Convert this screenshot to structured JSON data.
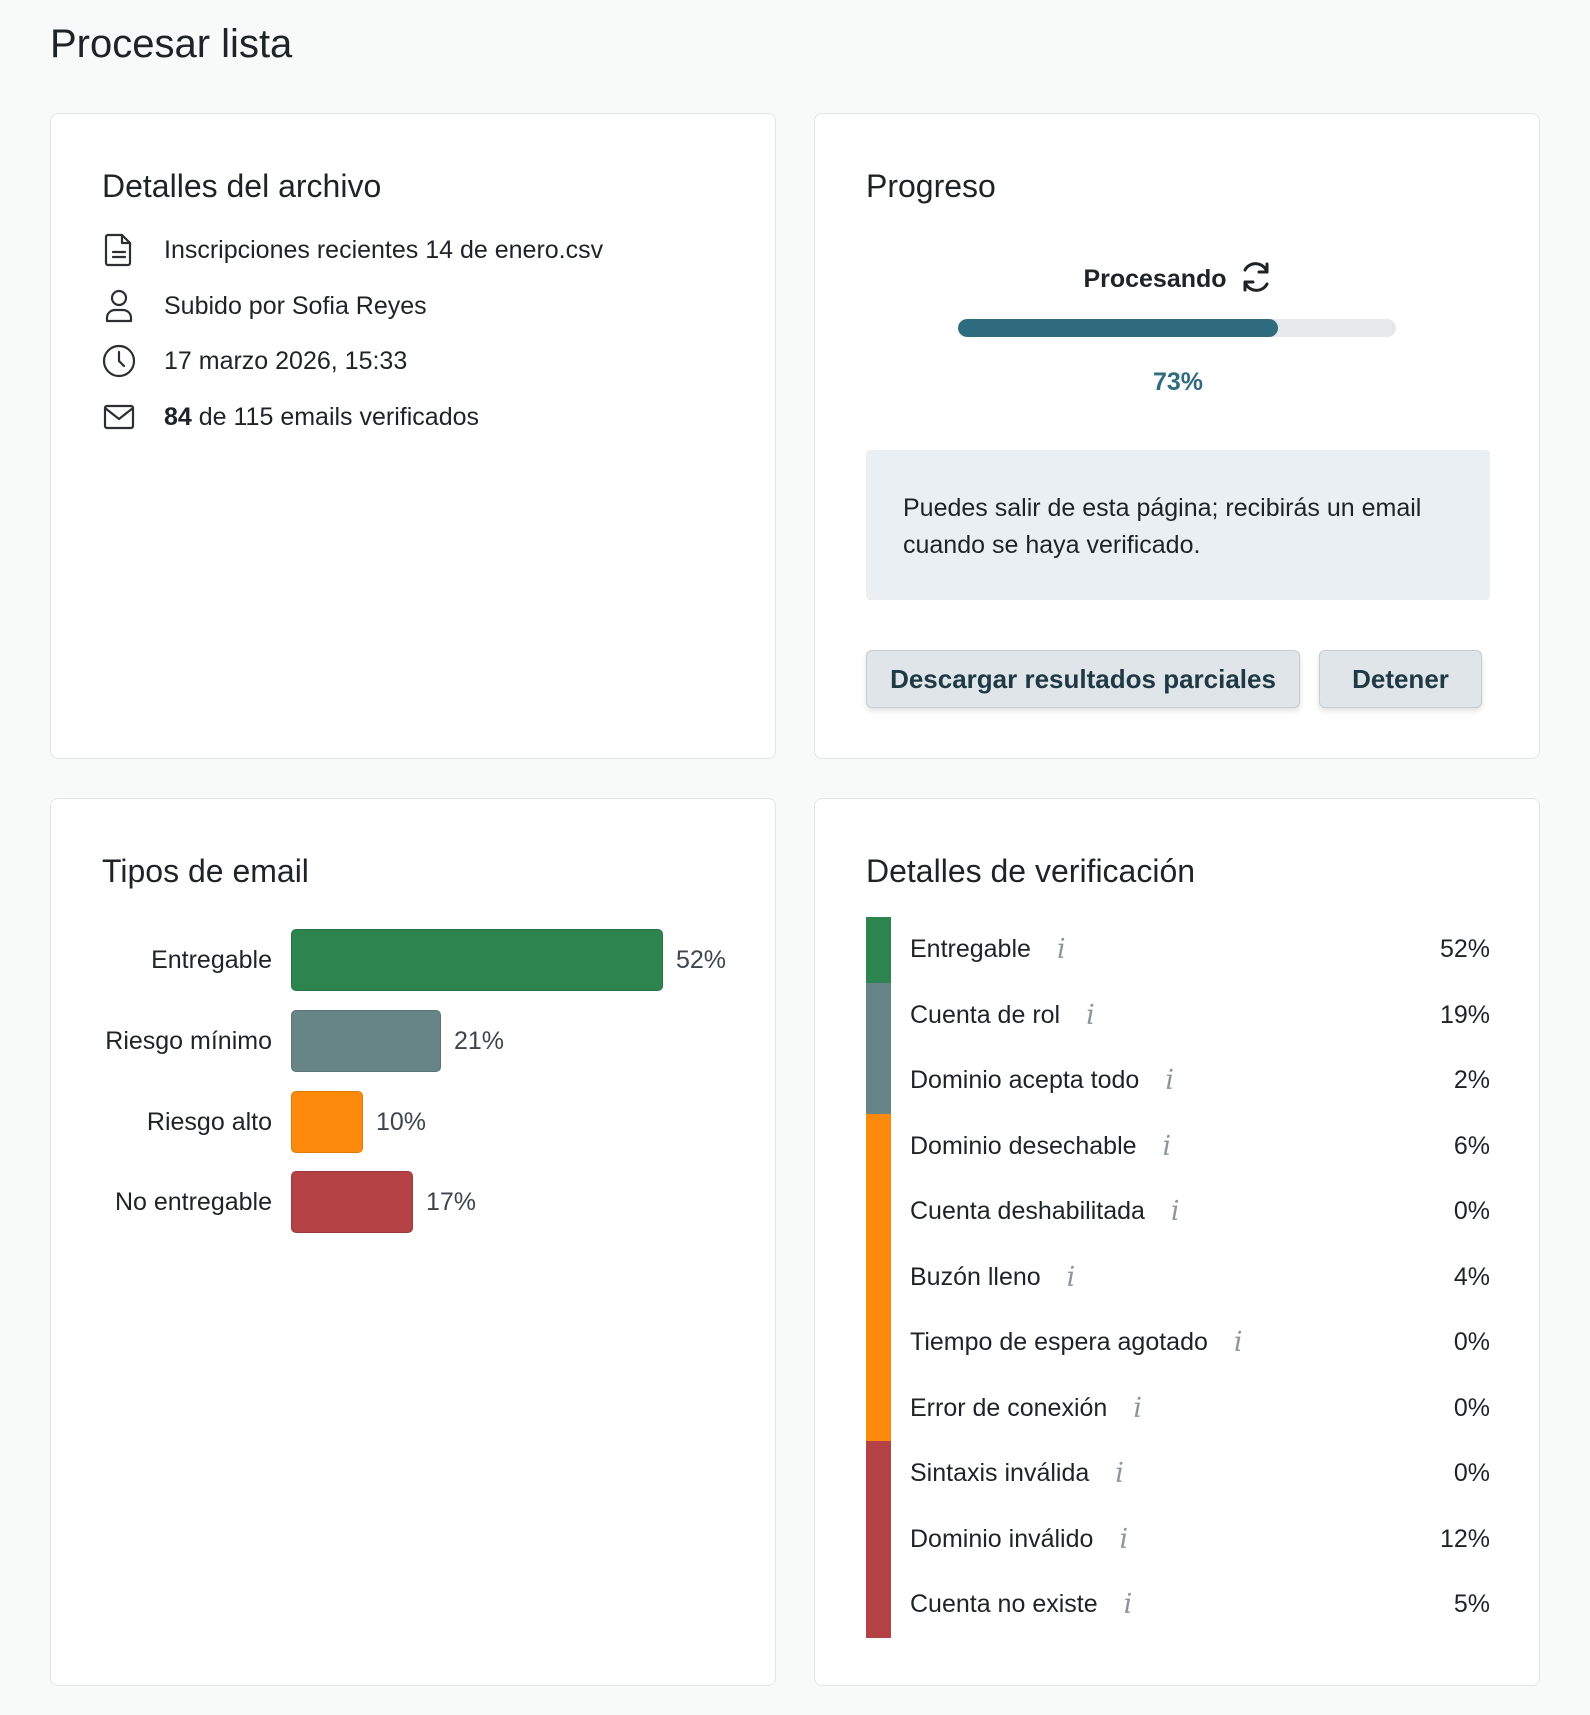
{
  "page_title": "Procesar lista",
  "file_details": {
    "title": "Detalles del archivo",
    "filename": "Inscripciones recientes 14 de enero.csv",
    "uploaded_by": "Subido por Sofia Reyes",
    "date": "17 marzo 2026, 15:33",
    "verified_count": "84",
    "verified_rest": " de 115 emails verificados",
    "icons": [
      "document-icon",
      "user-icon",
      "clock-icon",
      "envelope-icon"
    ]
  },
  "progress": {
    "title": "Progreso",
    "status": "Procesando",
    "percent_label": "73%",
    "percent_value": 73,
    "notice": "Puedes salir de esta página; recibirás un email cuando se haya verificado.",
    "download_button": "Descargar resultados parciales",
    "stop_button": "Detener",
    "accent_color": "#2e6b7e"
  },
  "email_types": {
    "title": "Tipos de email",
    "chart_data": {
      "type": "bar",
      "orientation": "horizontal",
      "categories": [
        "Entregable",
        "Riesgo mínimo",
        "Riesgo alto",
        "No entregable"
      ],
      "values": [
        52,
        21,
        10,
        17
      ],
      "value_labels": [
        "52%",
        "21%",
        "10%",
        "17%"
      ],
      "colors": [
        "#2e844f",
        "#678487",
        "#fd8a0c",
        "#b44245"
      ],
      "xlim": [
        0,
        100
      ]
    }
  },
  "verification": {
    "title": "Detalles de verificación",
    "rows": [
      {
        "label": "Entregable",
        "value": "52%",
        "color": "#2e844f"
      },
      {
        "label": "Cuenta de rol",
        "value": "19%",
        "color": "#678487"
      },
      {
        "label": "Dominio acepta todo",
        "value": "2%",
        "color": "#678487"
      },
      {
        "label": "Dominio desechable",
        "value": "6%",
        "color": "#fd8a0c"
      },
      {
        "label": "Cuenta deshabilitada",
        "value": "0%",
        "color": "#fd8a0c"
      },
      {
        "label": "Buzón lleno",
        "value": "4%",
        "color": "#fd8a0c"
      },
      {
        "label": "Tiempo de espera agotado",
        "value": "0%",
        "color": "#fd8a0c"
      },
      {
        "label": "Error de conexión",
        "value": "0%",
        "color": "#fd8a0c"
      },
      {
        "label": "Sintaxis inválida",
        "value": "0%",
        "color": "#b44245"
      },
      {
        "label": "Dominio inválido",
        "value": "12%",
        "color": "#b44245"
      },
      {
        "label": "Cuenta no existe",
        "value": "5%",
        "color": "#b44245"
      }
    ],
    "info_glyph": "i"
  }
}
